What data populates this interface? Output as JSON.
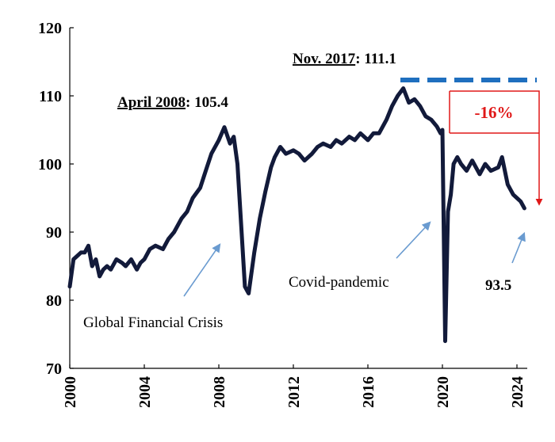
{
  "chart_data": {
    "type": "line",
    "title": "",
    "xlabel": "",
    "ylabel": "",
    "xlim": [
      2000,
      2024.6
    ],
    "ylim": [
      70,
      120
    ],
    "y_ticks": [
      70,
      80,
      90,
      100,
      110,
      120
    ],
    "x_ticks": [
      "2000",
      "2004",
      "2008",
      "2012",
      "2016",
      "2020",
      "2024"
    ],
    "grid": false,
    "legend": "none",
    "colors": {
      "line": "#121a3a",
      "dash": "#1f6fbf",
      "arrow_red": "#e01818",
      "arrow_blue": "#6a9bd0"
    },
    "series": [
      {
        "x": [
          2000.0,
          2000.2,
          2000.4,
          2000.6,
          2000.8,
          2001.0,
          2001.2,
          2001.4,
          2001.6,
          2001.8,
          2002.0,
          2002.2,
          2002.5,
          2002.8,
          2003.0,
          2003.3,
          2003.6,
          2003.8,
          2004.0,
          2004.3,
          2004.6,
          2005.0,
          2005.3,
          2005.6,
          2006.0,
          2006.3,
          2006.6,
          2007.0,
          2007.3,
          2007.6,
          2008.0,
          2008.3,
          2008.6,
          2008.8,
          2009.0,
          2009.2,
          2009.4,
          2009.6,
          2009.9,
          2010.2,
          2010.5,
          2010.8,
          2011.0,
          2011.3,
          2011.6,
          2012.0,
          2012.3,
          2012.6,
          2013.0,
          2013.3,
          2013.6,
          2014.0,
          2014.3,
          2014.6,
          2015.0,
          2015.3,
          2015.6,
          2016.0,
          2016.3,
          2016.6,
          2017.0,
          2017.3,
          2017.6,
          2017.9,
          2018.2,
          2018.5,
          2018.8,
          2019.1,
          2019.4,
          2019.7,
          2019.9,
          2020.0,
          2020.15,
          2020.3,
          2020.45,
          2020.6,
          2020.8,
          2021.0,
          2021.3,
          2021.6,
          2022.0,
          2022.3,
          2022.6,
          2023.0,
          2023.2,
          2023.5,
          2023.8,
          2024.0,
          2024.2,
          2024.4
        ],
        "y": [
          82,
          86,
          86.5,
          87,
          87,
          88,
          85,
          86,
          83.5,
          84.5,
          85,
          84.5,
          86,
          85.5,
          85,
          86,
          84.5,
          85.5,
          86,
          87.5,
          88,
          87.5,
          89,
          90,
          92,
          93,
          95,
          96.5,
          99,
          101.5,
          103.5,
          105.4,
          103,
          104,
          100,
          91,
          82,
          81,
          87,
          92,
          96,
          99.5,
          101,
          102.5,
          101.5,
          102,
          101.5,
          100.5,
          101.5,
          102.5,
          103,
          102.5,
          103.5,
          103,
          104,
          103.5,
          104.5,
          103.5,
          104.5,
          104.5,
          106.5,
          108.5,
          110,
          111.1,
          109,
          109.5,
          108.5,
          107,
          106.5,
          105.5,
          104.5,
          105,
          74,
          93,
          95.5,
          100,
          101,
          100,
          99,
          100.5,
          98.5,
          100,
          99,
          99.5,
          101,
          97,
          95.5,
          95,
          94.5,
          93.5
        ]
      }
    ],
    "annotations": {
      "peak_2008": {
        "label": "April 2008",
        "value_text": ": 105.4"
      },
      "peak_2017": {
        "label": "Nov. 2017",
        "value_text": ": 111.1"
      },
      "drop_pct": "-16%",
      "last_value": "93.5",
      "gfc": "Global Financial Crisis",
      "covid": "Covid-pandemic"
    }
  }
}
